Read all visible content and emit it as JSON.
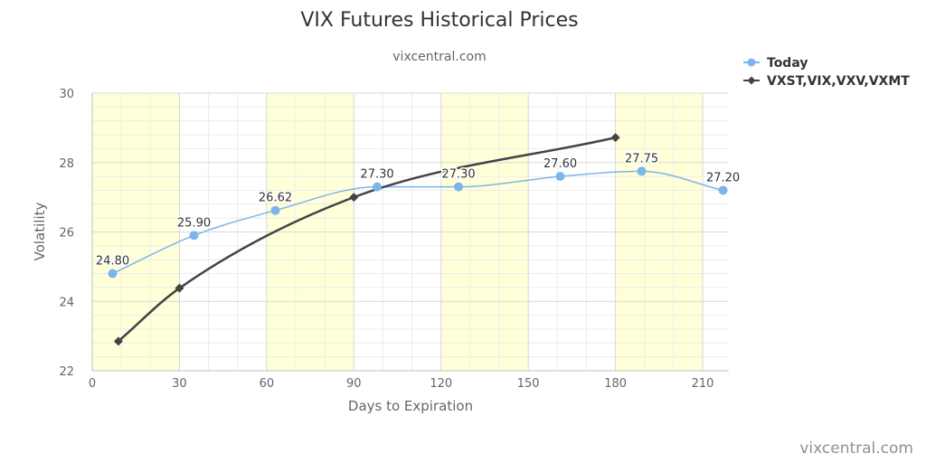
{
  "chart_data": {
    "type": "line",
    "title": "VIX Futures Historical Prices",
    "subtitle": "vixcentral.com",
    "xlabel": "Days to Expiration",
    "ylabel": "Volatility",
    "xlim": [
      0,
      219
    ],
    "ylim": [
      22,
      30
    ],
    "x_ticks": [
      0,
      30,
      60,
      90,
      120,
      150,
      180,
      210
    ],
    "y_ticks": [
      22,
      24,
      26,
      28,
      30
    ],
    "grid": true,
    "shaded_bands": [
      [
        0,
        30
      ],
      [
        60,
        90
      ],
      [
        120,
        150
      ],
      [
        180,
        210
      ]
    ],
    "legend_position": "top-right",
    "series": [
      {
        "name": "Today",
        "color": "#7cb5ec",
        "marker": "circle",
        "smooth": true,
        "x": [
          7,
          35,
          63,
          98,
          126,
          161,
          189,
          217
        ],
        "y": [
          24.8,
          25.9,
          26.62,
          27.3,
          27.3,
          27.6,
          27.75,
          27.2
        ],
        "labels": [
          "24.80",
          "25.90",
          "26.62",
          "27.30",
          "27.30",
          "27.60",
          "27.75",
          "27.20"
        ]
      },
      {
        "name": "VXST,VIX,VXV,VXMT",
        "color": "#434348",
        "marker": "diamond",
        "smooth": true,
        "x": [
          9,
          30,
          90,
          180
        ],
        "y": [
          22.85,
          24.38,
          27.0,
          28.72
        ]
      }
    ]
  },
  "credit": "vixcentral.com"
}
